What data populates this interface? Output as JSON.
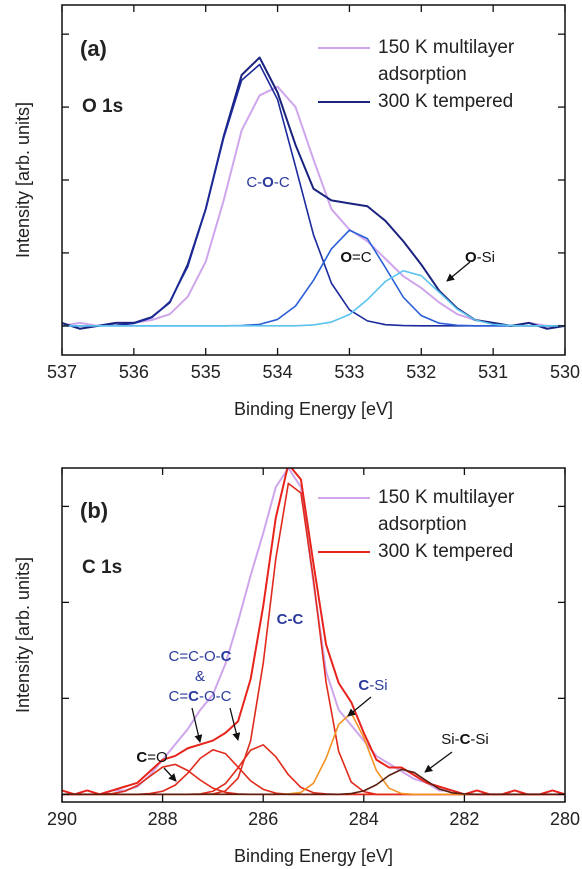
{
  "chart_data": [
    {
      "type": "line",
      "panel_label": "(a)",
      "region": "O 1s",
      "x_label": "Binding Energy [eV]",
      "y_label": "Intensity [arb. units]",
      "xlim": [
        537,
        530
      ],
      "xticks": [
        537,
        536,
        535,
        534,
        533,
        532,
        531,
        530
      ],
      "ylim": [
        -10,
        110
      ],
      "yticks": [
        0,
        25,
        50,
        75,
        100
      ],
      "ytick_labels": false,
      "x": [
        537,
        536.75,
        536.5,
        536.25,
        536,
        535.75,
        535.5,
        535.25,
        535,
        534.75,
        534.5,
        534.25,
        534,
        533.75,
        533.5,
        533.25,
        533,
        532.75,
        532.5,
        532.25,
        532,
        531.75,
        531.5,
        531.25,
        531,
        530.75,
        530.5,
        530.25,
        530
      ],
      "series": [
        {
          "name": "150 K multilayer adsorption",
          "color": "#cfa6ec",
          "values": [
            0,
            1,
            0,
            1,
            1,
            2,
            4,
            10,
            22,
            43,
            67,
            79,
            82,
            75,
            57,
            40,
            33,
            29,
            23,
            17,
            13,
            8,
            4,
            2,
            1,
            0,
            1,
            0,
            0
          ]
        },
        {
          "name": "300 K tempered",
          "color": "#1a237e",
          "values": [
            1,
            -1,
            0,
            1,
            1,
            3,
            8,
            21,
            40,
            65,
            86,
            92,
            80,
            62,
            47,
            43,
            42,
            41,
            36,
            29,
            21,
            12,
            6,
            2,
            1,
            0,
            1,
            -1,
            0
          ]
        },
        {
          "color": "#1c2a9c",
          "values": [
            0,
            0,
            0,
            0.2,
            0.8,
            2.8,
            8.3,
            20.3,
            40,
            64.4,
            84.2,
            89.6,
            77.6,
            54.6,
            31.2,
            14.6,
            5.5,
            1.7,
            0.4,
            0.1,
            0,
            0,
            0,
            0,
            0,
            0,
            0,
            0,
            0
          ]
        },
        {
          "color": "#2a5fd6",
          "values": [
            0,
            0,
            0,
            0,
            0,
            0,
            0,
            0,
            0,
            0,
            0.1,
            0.5,
            2.2,
            6.8,
            15.6,
            26.4,
            32.8,
            29.9,
            20,
            9.8,
            3.5,
            0.9,
            0.2,
            0,
            0,
            0,
            0,
            0,
            0
          ]
        },
        {
          "color": "#5cc3ee",
          "values": [
            0,
            0,
            0,
            0,
            0,
            0,
            0,
            0,
            0,
            0,
            0,
            0,
            0,
            0,
            0.3,
            1.3,
            3.9,
            9,
            15.2,
            18.9,
            17.2,
            11.5,
            5.7,
            2,
            0.5,
            0.1,
            0,
            0,
            0
          ]
        }
      ],
      "annotations": [
        {
          "color": "#2a3a9c",
          "parts": [
            {
              "text": "C-"
            },
            {
              "text": "O",
              "bold": true
            },
            {
              "text": "-C"
            }
          ]
        },
        {
          "color": "#111111",
          "parts": [
            {
              "text": "O",
              "bold": true
            },
            {
              "text": "=C"
            }
          ]
        },
        {
          "color": "#111111",
          "parts": [
            {
              "text": "O",
              "bold": true
            },
            {
              "text": "-Si"
            }
          ]
        }
      ]
    },
    {
      "type": "line",
      "panel_label": "(b)",
      "region": "C 1s",
      "x_label": "Binding Energy [eV]",
      "y_label": "Intensity [arb. units]",
      "xlim": [
        290,
        280
      ],
      "xticks": [
        290,
        288,
        286,
        284,
        282,
        280
      ],
      "ylim": [
        -2,
        85
      ],
      "yticks": [
        0,
        25,
        50,
        75
      ],
      "ytick_labels": false,
      "x": [
        290,
        289.75,
        289.5,
        289.25,
        289,
        288.75,
        288.5,
        288.25,
        288,
        287.75,
        287.5,
        287.25,
        287,
        286.75,
        286.5,
        286.25,
        286,
        285.75,
        285.5,
        285.25,
        285,
        284.75,
        284.5,
        284.25,
        284,
        283.75,
        283.5,
        283.25,
        283,
        282.75,
        282.5,
        282.25,
        282,
        281.75,
        281.5,
        281.25,
        281,
        280.75,
        280.5,
        280.25,
        280
      ],
      "series": [
        {
          "name": "150 K multilayer adsorption",
          "color": "#cfa6ec",
          "values": [
            0,
            0,
            0,
            0,
            1,
            1,
            2,
            5,
            9,
            13,
            17,
            22,
            26,
            34,
            45,
            57,
            68,
            80,
            85,
            80,
            55,
            32,
            22,
            18,
            14,
            10,
            8,
            6,
            4,
            3,
            1,
            1,
            0,
            0,
            0,
            0,
            0,
            0,
            0,
            0,
            0
          ]
        },
        {
          "name": "300 K tempered",
          "color": "#e8231c",
          "values": [
            1,
            0,
            1,
            0,
            1,
            2,
            3,
            6,
            9,
            10,
            12,
            13,
            14,
            16,
            19,
            30,
            49,
            72,
            86,
            82,
            60,
            39,
            29,
            24,
            16,
            9,
            7,
            7,
            5,
            3,
            2,
            1,
            0,
            1,
            0,
            0,
            1,
            0,
            0,
            1,
            0
          ]
        },
        {
          "color": "#e02a1c",
          "values": [
            0,
            0,
            0,
            0,
            0.2,
            0.8,
            2.3,
            4.7,
            7.1,
            7.8,
            6.2,
            3.7,
            1.6,
            0.5,
            0.1,
            0,
            0,
            0,
            0,
            0,
            0,
            0,
            0,
            0,
            0,
            0,
            0,
            0,
            0,
            0,
            0,
            0,
            0,
            0,
            0,
            0,
            0,
            0,
            0,
            0,
            0
          ]
        },
        {
          "color": "#e02a1c",
          "values": [
            0,
            0,
            0,
            0,
            0,
            0,
            0,
            0.2,
            0.8,
            2.4,
            5.5,
            9.4,
            11.6,
            10.6,
            7.1,
            3.5,
            1.3,
            0.3,
            0,
            0,
            0,
            0,
            0,
            0,
            0,
            0,
            0,
            0,
            0,
            0,
            0,
            0,
            0,
            0,
            0,
            0,
            0,
            0,
            0,
            0,
            0
          ]
        },
        {
          "color": "#e02a1c",
          "values": [
            0,
            0,
            0,
            0,
            0,
            0,
            0,
            0,
            0,
            0,
            0,
            0.1,
            0.8,
            2.8,
            6.9,
            11.5,
            12.9,
            9.8,
            5.1,
            1.8,
            0.4,
            0.1,
            0,
            0,
            0,
            0,
            0,
            0,
            0,
            0,
            0,
            0,
            0,
            0,
            0,
            0,
            0,
            0,
            0,
            0,
            0
          ]
        },
        {
          "color": "#e02a1c",
          "values": [
            0,
            0,
            0,
            0,
            0,
            0,
            0,
            0,
            0,
            0,
            0,
            0,
            0.1,
            0.9,
            4.2,
            14,
            34.1,
            61.3,
            81,
            78.5,
            55.9,
            29.2,
            11.2,
            3.2,
            0.7,
            0,
            0,
            0,
            0,
            0,
            0,
            0,
            0,
            0,
            0,
            0,
            0,
            0,
            0,
            0,
            0
          ]
        },
        {
          "color": "#f39223",
          "values": [
            0,
            0,
            0,
            0,
            0,
            0,
            0,
            0,
            0,
            0,
            0,
            0,
            0,
            0,
            0,
            0,
            0,
            0,
            0.1,
            0.5,
            2.9,
            9.4,
            18.2,
            21.2,
            14.8,
            6.2,
            1.6,
            0.2,
            0,
            0,
            0,
            0,
            0,
            0,
            0,
            0,
            0,
            0,
            0,
            0,
            0
          ]
        },
        {
          "color": "#5a1e10",
          "values": [
            0,
            0,
            0,
            0,
            0,
            0,
            0,
            0,
            0,
            0,
            0,
            0,
            0,
            0,
            0,
            0,
            0,
            0,
            0,
            0,
            0,
            0,
            0,
            0.2,
            0.9,
            2.5,
            4.9,
            6.5,
            5.7,
            3.5,
            1.4,
            0.4,
            0.1,
            0,
            0,
            0,
            0,
            0,
            0,
            0,
            0
          ]
        }
      ],
      "annotations": [
        {
          "color": "#2a3a9c",
          "parts": [
            {
              "text": "C=C-O-"
            },
            {
              "text": "C",
              "bold": true
            }
          ]
        },
        {
          "color": "#2a3a9c",
          "parts": [
            {
              "text": "&"
            }
          ]
        },
        {
          "color": "#2a3a9c",
          "parts": [
            {
              "text": "C="
            },
            {
              "text": "C",
              "bold": true
            },
            {
              "text": "-O-C"
            }
          ]
        },
        {
          "color": "#111111",
          "parts": [
            {
              "text": "C",
              "bold": true
            },
            {
              "text": "=O"
            }
          ]
        },
        {
          "color": "#2a3a9c",
          "parts": [
            {
              "text": "C-C",
              "bold": true
            }
          ]
        },
        {
          "color": "#2a3a9c",
          "parts": [
            {
              "text": "C",
              "bold": true
            },
            {
              "text": "-Si"
            }
          ]
        },
        {
          "color": "#111111",
          "parts": [
            {
              "text": "Si-"
            },
            {
              "text": "C",
              "bold": true
            },
            {
              "text": "-Si"
            }
          ]
        }
      ]
    }
  ]
}
